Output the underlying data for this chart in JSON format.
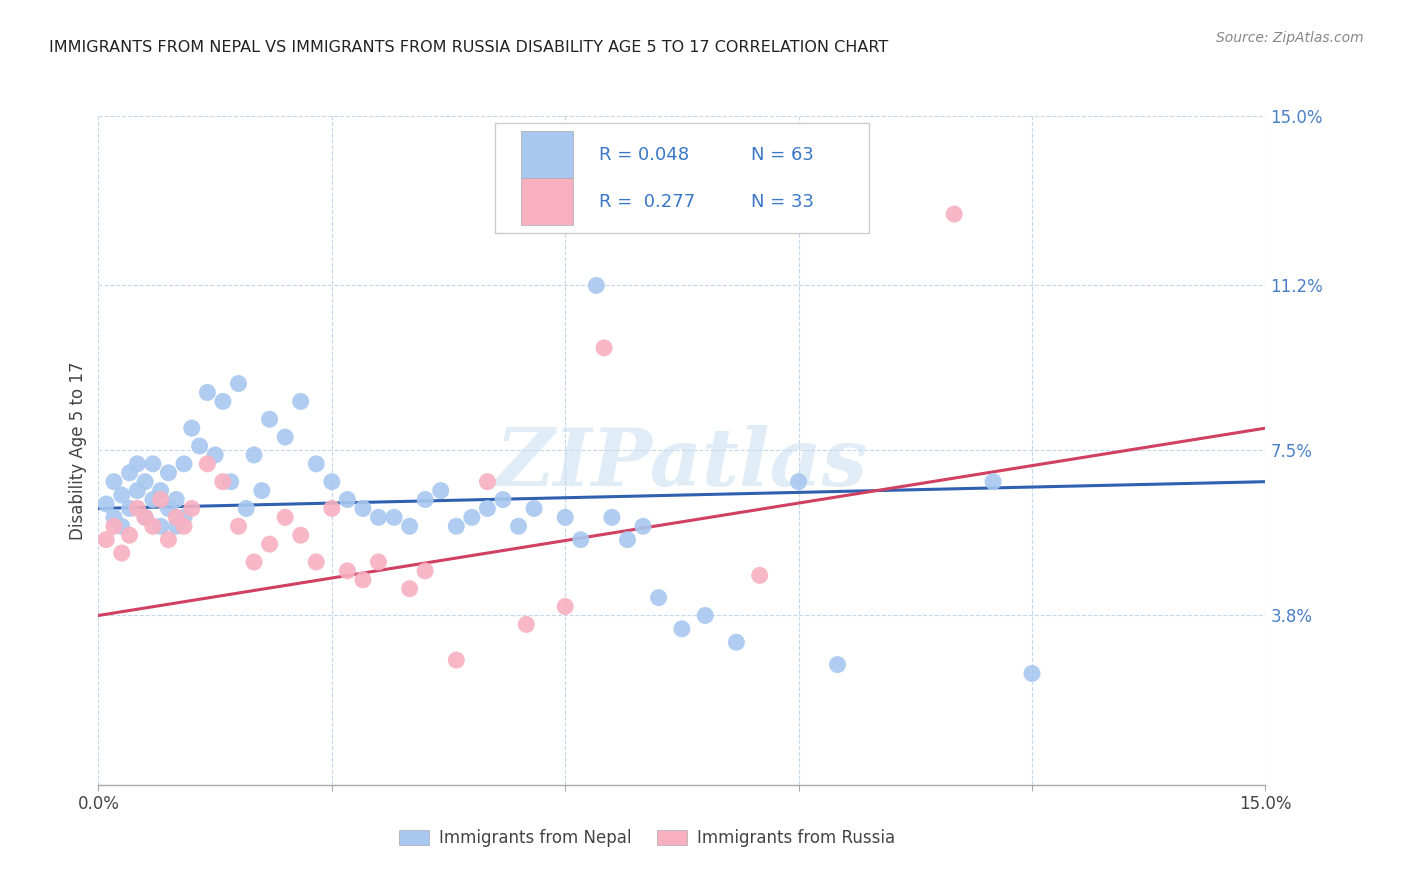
{
  "title": "IMMIGRANTS FROM NEPAL VS IMMIGRANTS FROM RUSSIA DISABILITY AGE 5 TO 17 CORRELATION CHART",
  "source": "Source: ZipAtlas.com",
  "ylabel": "Disability Age 5 to 17",
  "xlim": [
    0.0,
    0.15
  ],
  "ylim": [
    0.0,
    0.15
  ],
  "x_tick_pos": [
    0.0,
    0.03,
    0.06,
    0.09,
    0.12,
    0.15
  ],
  "x_tick_labels": [
    "0.0%",
    "",
    "",
    "",
    "",
    "15.0%"
  ],
  "y_tick_positions_right": [
    0.0,
    0.038,
    0.075,
    0.112,
    0.15
  ],
  "y_tick_labels_right": [
    "",
    "3.8%",
    "7.5%",
    "11.2%",
    "15.0%"
  ],
  "nepal_color": "#a8c8f0",
  "russia_color": "#f8b0c0",
  "nepal_line_color": "#3060b0",
  "russia_line_color": "#d04060",
  "nepal_R": 0.048,
  "nepal_N": 63,
  "russia_R": 0.277,
  "russia_N": 33,
  "watermark": "ZIPatlas",
  "nepal_x": [
    0.001,
    0.002,
    0.002,
    0.003,
    0.003,
    0.004,
    0.004,
    0.005,
    0.005,
    0.006,
    0.006,
    0.007,
    0.007,
    0.008,
    0.008,
    0.009,
    0.009,
    0.01,
    0.01,
    0.011,
    0.011,
    0.012,
    0.013,
    0.014,
    0.015,
    0.016,
    0.017,
    0.018,
    0.019,
    0.02,
    0.021,
    0.022,
    0.024,
    0.026,
    0.028,
    0.03,
    0.032,
    0.034,
    0.036,
    0.038,
    0.04,
    0.042,
    0.044,
    0.046,
    0.048,
    0.05,
    0.052,
    0.054,
    0.056,
    0.06,
    0.062,
    0.064,
    0.066,
    0.068,
    0.07,
    0.072,
    0.075,
    0.078,
    0.082,
    0.09,
    0.095,
    0.115,
    0.12
  ],
  "nepal_y": [
    0.063,
    0.06,
    0.068,
    0.058,
    0.065,
    0.062,
    0.07,
    0.066,
    0.072,
    0.06,
    0.068,
    0.064,
    0.072,
    0.058,
    0.066,
    0.062,
    0.07,
    0.058,
    0.064,
    0.072,
    0.06,
    0.08,
    0.076,
    0.088,
    0.074,
    0.086,
    0.068,
    0.09,
    0.062,
    0.074,
    0.066,
    0.082,
    0.078,
    0.086,
    0.072,
    0.068,
    0.064,
    0.062,
    0.06,
    0.06,
    0.058,
    0.064,
    0.066,
    0.058,
    0.06,
    0.062,
    0.064,
    0.058,
    0.062,
    0.06,
    0.055,
    0.112,
    0.06,
    0.055,
    0.058,
    0.042,
    0.035,
    0.038,
    0.032,
    0.068,
    0.027,
    0.068,
    0.025
  ],
  "russia_x": [
    0.001,
    0.002,
    0.003,
    0.004,
    0.005,
    0.006,
    0.007,
    0.008,
    0.009,
    0.01,
    0.011,
    0.012,
    0.014,
    0.016,
    0.018,
    0.02,
    0.022,
    0.024,
    0.026,
    0.028,
    0.03,
    0.032,
    0.034,
    0.036,
    0.04,
    0.042,
    0.046,
    0.05,
    0.055,
    0.06,
    0.065,
    0.085,
    0.11
  ],
  "russia_y": [
    0.055,
    0.058,
    0.052,
    0.056,
    0.062,
    0.06,
    0.058,
    0.064,
    0.055,
    0.06,
    0.058,
    0.062,
    0.072,
    0.068,
    0.058,
    0.05,
    0.054,
    0.06,
    0.056,
    0.05,
    0.062,
    0.048,
    0.046,
    0.05,
    0.044,
    0.048,
    0.028,
    0.068,
    0.036,
    0.04,
    0.098,
    0.047,
    0.128
  ]
}
